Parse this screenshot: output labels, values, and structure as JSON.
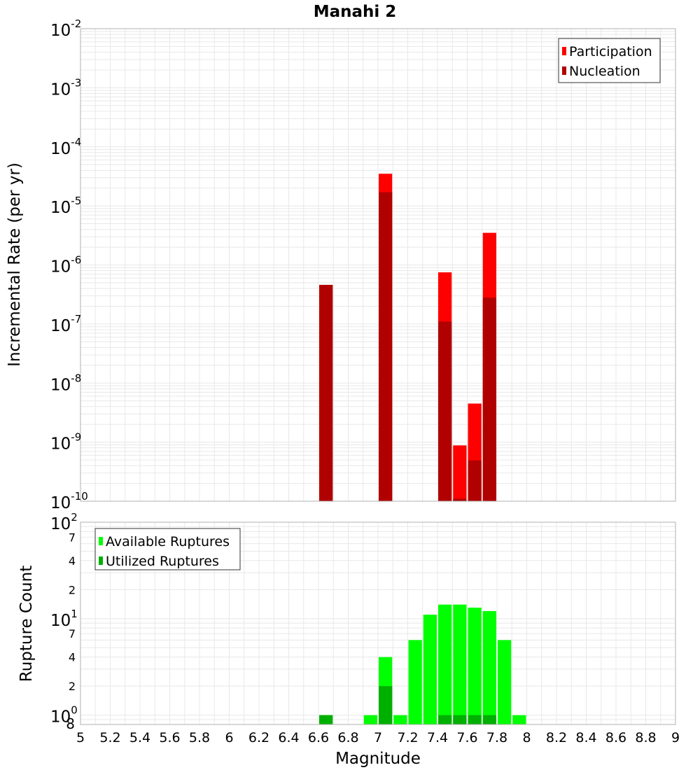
{
  "chart_data": [
    {
      "type": "bar",
      "title": "Manahi 2",
      "ylabel": "Incremental Rate (per yr)",
      "xlabel": "",
      "scale_y": "log",
      "ylim": [
        1e-10,
        0.01
      ],
      "xlim": [
        5,
        9
      ],
      "grid": true,
      "legend_placement": "top-right",
      "bin_width": 0.1,
      "y_tick_exponents": [
        "-2",
        "-3",
        "-4",
        "-5",
        "-6",
        "-7",
        "-8",
        "-9",
        "-10"
      ],
      "y_tick_base": "10",
      "series": [
        {
          "name": "Participation",
          "color": "#ff0000",
          "points": [
            {
              "x": 6.65,
              "y": 4.6e-07
            },
            {
              "x": 7.05,
              "y": 3.5e-05
            },
            {
              "x": 7.45,
              "y": 7.5e-07
            },
            {
              "x": 7.55,
              "y": 8.8e-10
            },
            {
              "x": 7.65,
              "y": 4.5e-09
            },
            {
              "x": 7.75,
              "y": 3.5e-06
            }
          ]
        },
        {
          "name": "Nucleation",
          "color": "#b00000",
          "points": [
            {
              "x": 6.65,
              "y": 4.6e-07
            },
            {
              "x": 7.05,
              "y": 1.7e-05
            },
            {
              "x": 7.45,
              "y": 1.1e-07
            },
            {
              "x": 7.55,
              "y": 1.1e-10
            },
            {
              "x": 7.65,
              "y": 4.9e-10
            },
            {
              "x": 7.75,
              "y": 2.8e-07
            }
          ]
        }
      ]
    },
    {
      "type": "bar",
      "title": "",
      "ylabel": "Rupture Count",
      "xlabel": "Magnitude",
      "scale_y": "log",
      "ylim": [
        0.8,
        100
      ],
      "xlim": [
        5,
        9
      ],
      "grid": true,
      "legend_placement": "top-left",
      "bin_width": 0.1,
      "x_ticks": [
        "5",
        "5.2",
        "5.4",
        "5.6",
        "5.8",
        "6",
        "6.2",
        "6.4",
        "6.6",
        "6.8",
        "7",
        "7.2",
        "7.4",
        "7.6",
        "7.8",
        "8",
        "8.2",
        "8.4",
        "8.6",
        "8.8",
        "9"
      ],
      "y_major_ticks": [
        {
          "value": 100,
          "base": "10",
          "exp": "2"
        },
        {
          "value": 10,
          "base": "10",
          "exp": "1"
        },
        {
          "value": 1,
          "base": "10",
          "exp": "0"
        }
      ],
      "y_minor_labels": [
        {
          "value": 70,
          "label": "7"
        },
        {
          "value": 40,
          "label": "4"
        },
        {
          "value": 20,
          "label": "2"
        },
        {
          "value": 7,
          "label": "7"
        },
        {
          "value": 4,
          "label": "4"
        },
        {
          "value": 2,
          "label": "2"
        },
        {
          "value": 0.8,
          "label": "8"
        }
      ],
      "series": [
        {
          "name": "Available Ruptures",
          "color": "#00ff00",
          "points": [
            {
              "x": 6.65,
              "y": 1
            },
            {
              "x": 6.95,
              "y": 1
            },
            {
              "x": 7.05,
              "y": 4
            },
            {
              "x": 7.15,
              "y": 1
            },
            {
              "x": 7.25,
              "y": 6
            },
            {
              "x": 7.35,
              "y": 11
            },
            {
              "x": 7.45,
              "y": 14
            },
            {
              "x": 7.55,
              "y": 14
            },
            {
              "x": 7.65,
              "y": 13
            },
            {
              "x": 7.75,
              "y": 12
            },
            {
              "x": 7.85,
              "y": 6
            },
            {
              "x": 7.95,
              "y": 1
            }
          ]
        },
        {
          "name": "Utilized Ruptures",
          "color": "#00b000",
          "points": [
            {
              "x": 6.65,
              "y": 1
            },
            {
              "x": 7.05,
              "y": 2
            },
            {
              "x": 7.45,
              "y": 1
            },
            {
              "x": 7.55,
              "y": 1
            },
            {
              "x": 7.65,
              "y": 1
            },
            {
              "x": 7.75,
              "y": 1
            }
          ]
        }
      ]
    }
  ]
}
